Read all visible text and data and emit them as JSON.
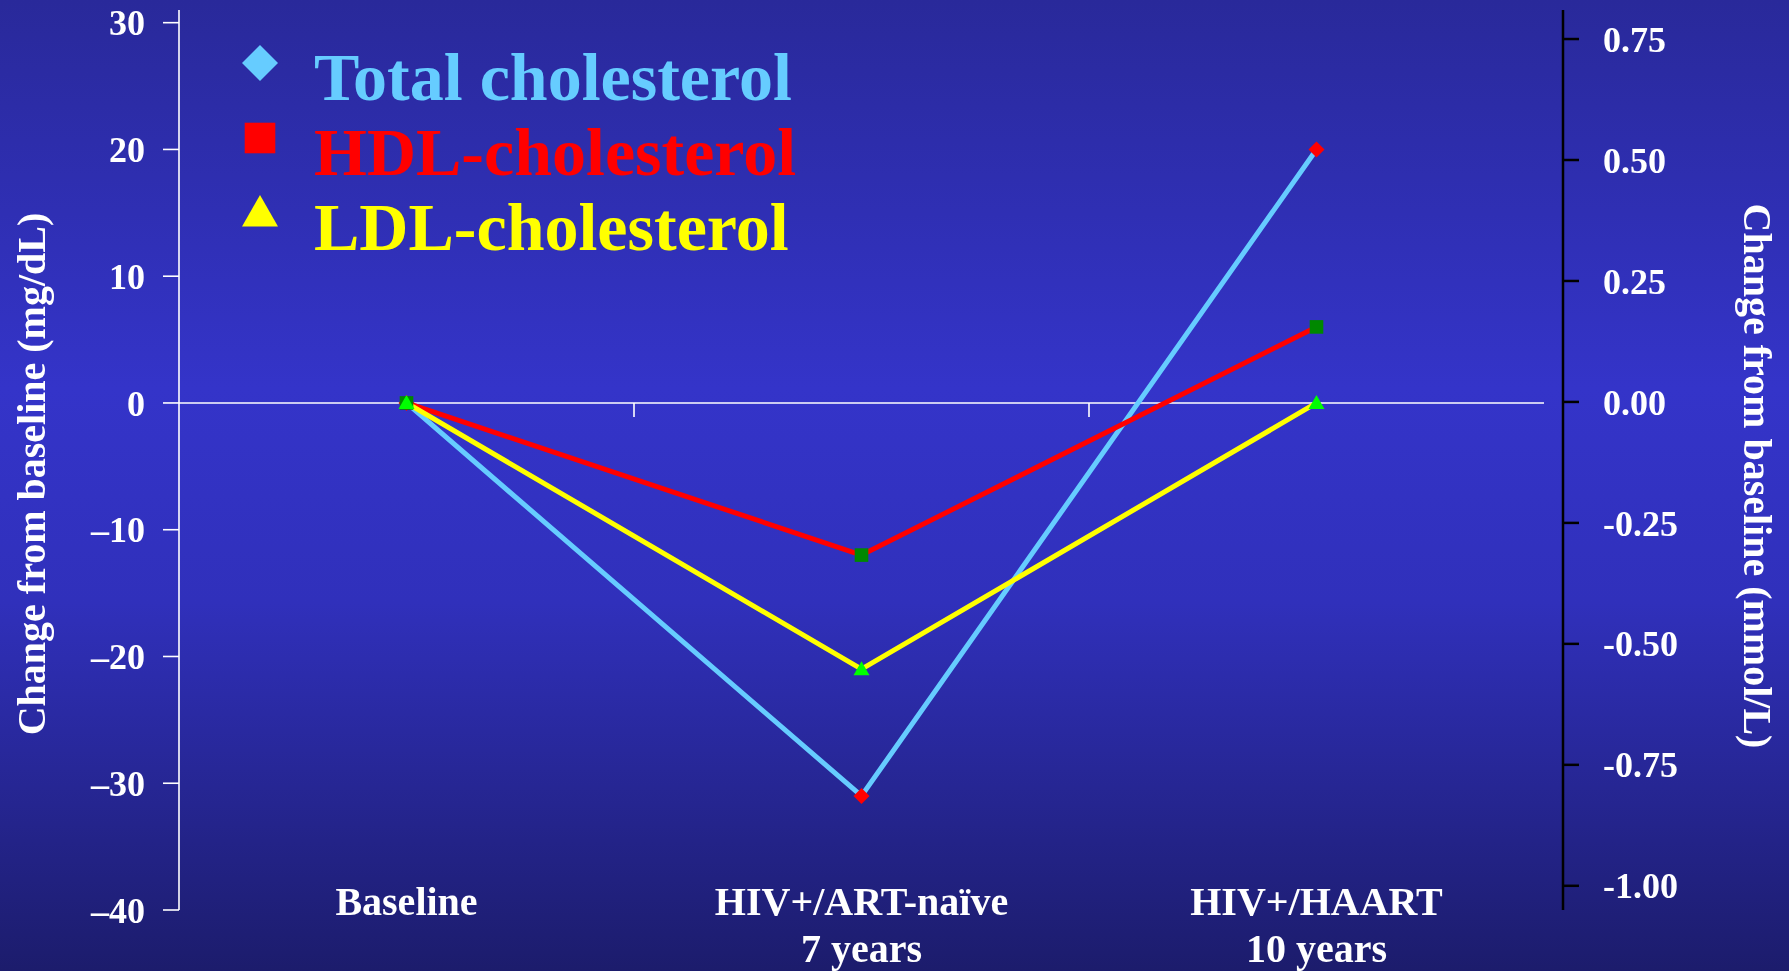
{
  "chart_data": {
    "type": "line",
    "categories": [
      "Baseline",
      "HIV+/ART-naïve\n7 years",
      "HIV+/HAART\n10 years"
    ],
    "series": [
      {
        "name": "Total cholesterol",
        "color": "#66ccff",
        "marker": "diamond",
        "colors": [
          "#ff0000",
          "#ff0000",
          "#ff0000"
        ],
        "values": [
          0,
          -31,
          20
        ]
      },
      {
        "name": "HDL-cholesterol",
        "color": "#ff0000",
        "marker": "square",
        "colors": [
          "#008800",
          "#008800",
          "#008800"
        ],
        "values": [
          0,
          -12,
          6
        ]
      },
      {
        "name": "LDL-cholesterol",
        "color": "#ffff00",
        "marker": "triangle",
        "colors": [
          "#00ff00",
          "#00ff00",
          "#00ff00"
        ],
        "values": [
          0,
          -21,
          0
        ]
      }
    ],
    "ylabel": "Change from baseline (mg/dL)",
    "y2label": "Change from baseline (mmol/L)",
    "ylim": [
      -40,
      31
    ],
    "yticks": [
      {
        "value": -40,
        "label": "–40"
      },
      {
        "value": -30,
        "label": "–30"
      },
      {
        "value": -20,
        "label": "–20"
      },
      {
        "value": -10,
        "label": "–10"
      },
      0,
      10,
      20,
      30
    ],
    "y2lim": [
      -1.05,
      0.81
    ],
    "y2ticks": [
      {
        "value": -1,
        "label": "-1.00"
      },
      {
        "value": -0.75,
        "label": "-0.75"
      },
      {
        "value": -0.5,
        "label": "-0.50"
      },
      {
        "value": -0.25,
        "label": "-0.25"
      },
      {
        "value": 0,
        "label": "0.00"
      },
      {
        "value": 0.25,
        "label": "0.25"
      },
      {
        "value": 0.5,
        "label": "0.50"
      },
      {
        "value": 0.75,
        "label": "0.75"
      }
    ],
    "legend": "top left"
  }
}
